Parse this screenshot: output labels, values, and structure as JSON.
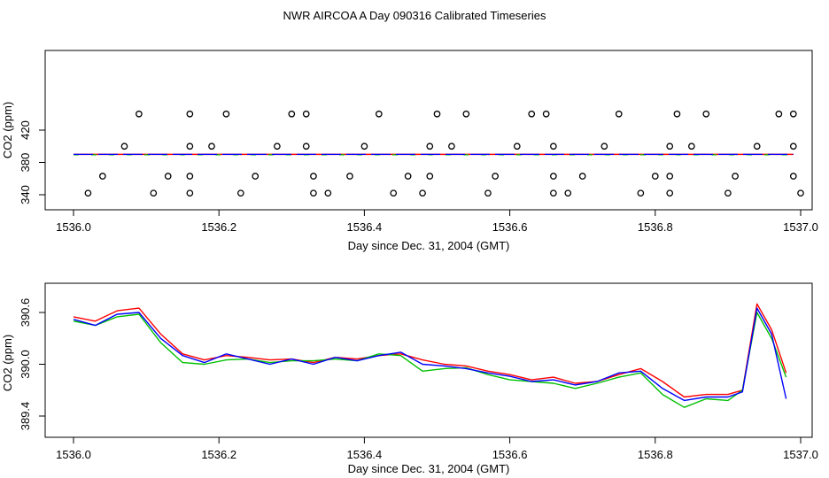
{
  "title": "NWR AIRCOA A  Day 090316  Calibrated Timeseries",
  "colors": {
    "red": "#ff0000",
    "green": "#00c000",
    "blue": "#0000ff",
    "axis": "#000000"
  },
  "chart_data": [
    {
      "type": "scatter",
      "xlabel": "Day since Dec. 31, 2004 (GMT)",
      "ylabel": "CO2 (ppm)",
      "xlim": [
        1536.0,
        1537.0
      ],
      "ylim": [
        332,
        448
      ],
      "xticks": [
        1536.0,
        1536.2,
        1536.4,
        1536.6,
        1536.8,
        1537.0
      ],
      "xtick_labels": [
        "1536.0",
        "1536.2",
        "1536.4",
        "1536.6",
        "1536.8",
        "1537.0"
      ],
      "yticks": [
        340,
        380,
        420
      ],
      "ytick_labels": [
        "340",
        "380",
        "420"
      ],
      "grid": false,
      "markers": [
        {
          "x": 1536.09,
          "y": 440
        },
        {
          "x": 1536.16,
          "y": 440
        },
        {
          "x": 1536.21,
          "y": 440
        },
        {
          "x": 1536.3,
          "y": 440
        },
        {
          "x": 1536.32,
          "y": 440
        },
        {
          "x": 1536.42,
          "y": 440
        },
        {
          "x": 1536.5,
          "y": 440
        },
        {
          "x": 1536.54,
          "y": 440
        },
        {
          "x": 1536.63,
          "y": 440
        },
        {
          "x": 1536.65,
          "y": 440
        },
        {
          "x": 1536.75,
          "y": 440
        },
        {
          "x": 1536.83,
          "y": 440
        },
        {
          "x": 1536.87,
          "y": 440
        },
        {
          "x": 1536.97,
          "y": 440
        },
        {
          "x": 1536.99,
          "y": 440
        },
        {
          "x": 1536.07,
          "y": 400
        },
        {
          "x": 1536.16,
          "y": 400
        },
        {
          "x": 1536.19,
          "y": 400
        },
        {
          "x": 1536.28,
          "y": 400
        },
        {
          "x": 1536.32,
          "y": 400
        },
        {
          "x": 1536.4,
          "y": 400
        },
        {
          "x": 1536.49,
          "y": 400
        },
        {
          "x": 1536.52,
          "y": 400
        },
        {
          "x": 1536.61,
          "y": 400
        },
        {
          "x": 1536.66,
          "y": 400
        },
        {
          "x": 1536.73,
          "y": 400
        },
        {
          "x": 1536.82,
          "y": 400
        },
        {
          "x": 1536.85,
          "y": 400
        },
        {
          "x": 1536.94,
          "y": 400
        },
        {
          "x": 1536.99,
          "y": 400
        },
        {
          "x": 1536.04,
          "y": 363
        },
        {
          "x": 1536.13,
          "y": 363
        },
        {
          "x": 1536.16,
          "y": 363
        },
        {
          "x": 1536.25,
          "y": 363
        },
        {
          "x": 1536.33,
          "y": 363
        },
        {
          "x": 1536.38,
          "y": 363
        },
        {
          "x": 1536.46,
          "y": 363
        },
        {
          "x": 1536.49,
          "y": 363
        },
        {
          "x": 1536.58,
          "y": 363
        },
        {
          "x": 1536.66,
          "y": 363
        },
        {
          "x": 1536.7,
          "y": 363
        },
        {
          "x": 1536.8,
          "y": 363
        },
        {
          "x": 1536.82,
          "y": 363
        },
        {
          "x": 1536.91,
          "y": 363
        },
        {
          "x": 1536.99,
          "y": 363
        },
        {
          "x": 1536.02,
          "y": 342
        },
        {
          "x": 1536.11,
          "y": 342
        },
        {
          "x": 1536.16,
          "y": 342
        },
        {
          "x": 1536.23,
          "y": 342
        },
        {
          "x": 1536.33,
          "y": 342
        },
        {
          "x": 1536.35,
          "y": 342
        },
        {
          "x": 1536.44,
          "y": 342
        },
        {
          "x": 1536.48,
          "y": 342
        },
        {
          "x": 1536.57,
          "y": 342
        },
        {
          "x": 1536.66,
          "y": 342
        },
        {
          "x": 1536.68,
          "y": 342
        },
        {
          "x": 1536.78,
          "y": 342
        },
        {
          "x": 1536.82,
          "y": 342
        },
        {
          "x": 1536.9,
          "y": 342
        },
        {
          "x": 1537.0,
          "y": 342
        }
      ],
      "line": {
        "x": [
          1536.0,
          1536.99
        ],
        "y": [
          390.0,
          390.0
        ]
      }
    },
    {
      "type": "line",
      "xlabel": "Day since Dec. 31, 2004 (GMT)",
      "ylabel": "CO2 (ppm)",
      "xlim": [
        1536.0,
        1537.0
      ],
      "ylim": [
        389.32,
        390.76
      ],
      "xticks": [
        1536.0,
        1536.2,
        1536.4,
        1536.6,
        1536.8,
        1537.0
      ],
      "xtick_labels": [
        "1536.0",
        "1536.2",
        "1536.4",
        "1536.6",
        "1536.8",
        "1537.0"
      ],
      "yticks": [
        389.4,
        390.0,
        390.6
      ],
      "ytick_labels": [
        "389.4",
        "390.0",
        "390.6"
      ],
      "grid": false,
      "x": [
        1536.0,
        1536.03,
        1536.06,
        1536.09,
        1536.12,
        1536.15,
        1536.18,
        1536.21,
        1536.24,
        1536.27,
        1536.3,
        1536.33,
        1536.36,
        1536.39,
        1536.42,
        1536.45,
        1536.48,
        1536.51,
        1536.54,
        1536.57,
        1536.6,
        1536.63,
        1536.66,
        1536.69,
        1536.72,
        1536.75,
        1536.78,
        1536.81,
        1536.84,
        1536.87,
        1536.9,
        1536.92,
        1536.94,
        1536.96,
        1536.98
      ],
      "series": [
        {
          "color": "#ff0000",
          "values": [
            390.55,
            390.5,
            390.62,
            390.65,
            390.35,
            390.12,
            390.05,
            390.1,
            390.08,
            390.05,
            390.06,
            390.02,
            390.08,
            390.06,
            390.1,
            390.12,
            390.05,
            390.0,
            389.98,
            389.92,
            389.88,
            389.82,
            389.85,
            389.78,
            389.8,
            389.88,
            389.95,
            389.8,
            389.62,
            389.65,
            389.65,
            389.7,
            390.7,
            390.4,
            389.9
          ]
        },
        {
          "color": "#00c000",
          "values": [
            390.5,
            390.45,
            390.55,
            390.58,
            390.25,
            390.02,
            390.0,
            390.05,
            390.06,
            390.02,
            390.04,
            390.04,
            390.06,
            390.04,
            390.12,
            390.1,
            389.92,
            389.95,
            389.96,
            389.88,
            389.82,
            389.8,
            389.78,
            389.72,
            389.78,
            389.85,
            389.9,
            389.65,
            389.5,
            389.6,
            389.58,
            389.7,
            390.6,
            390.3,
            389.85
          ]
        },
        {
          "color": "#0000ff",
          "values": [
            390.52,
            390.45,
            390.58,
            390.6,
            390.3,
            390.1,
            390.02,
            390.12,
            390.06,
            390.0,
            390.06,
            390.0,
            390.08,
            390.04,
            390.1,
            390.14,
            390.0,
            389.98,
            389.95,
            389.9,
            389.86,
            389.8,
            389.82,
            389.76,
            389.8,
            389.9,
            389.92,
            389.72,
            389.58,
            389.62,
            389.62,
            389.68,
            390.65,
            390.35,
            389.6
          ]
        }
      ]
    }
  ]
}
